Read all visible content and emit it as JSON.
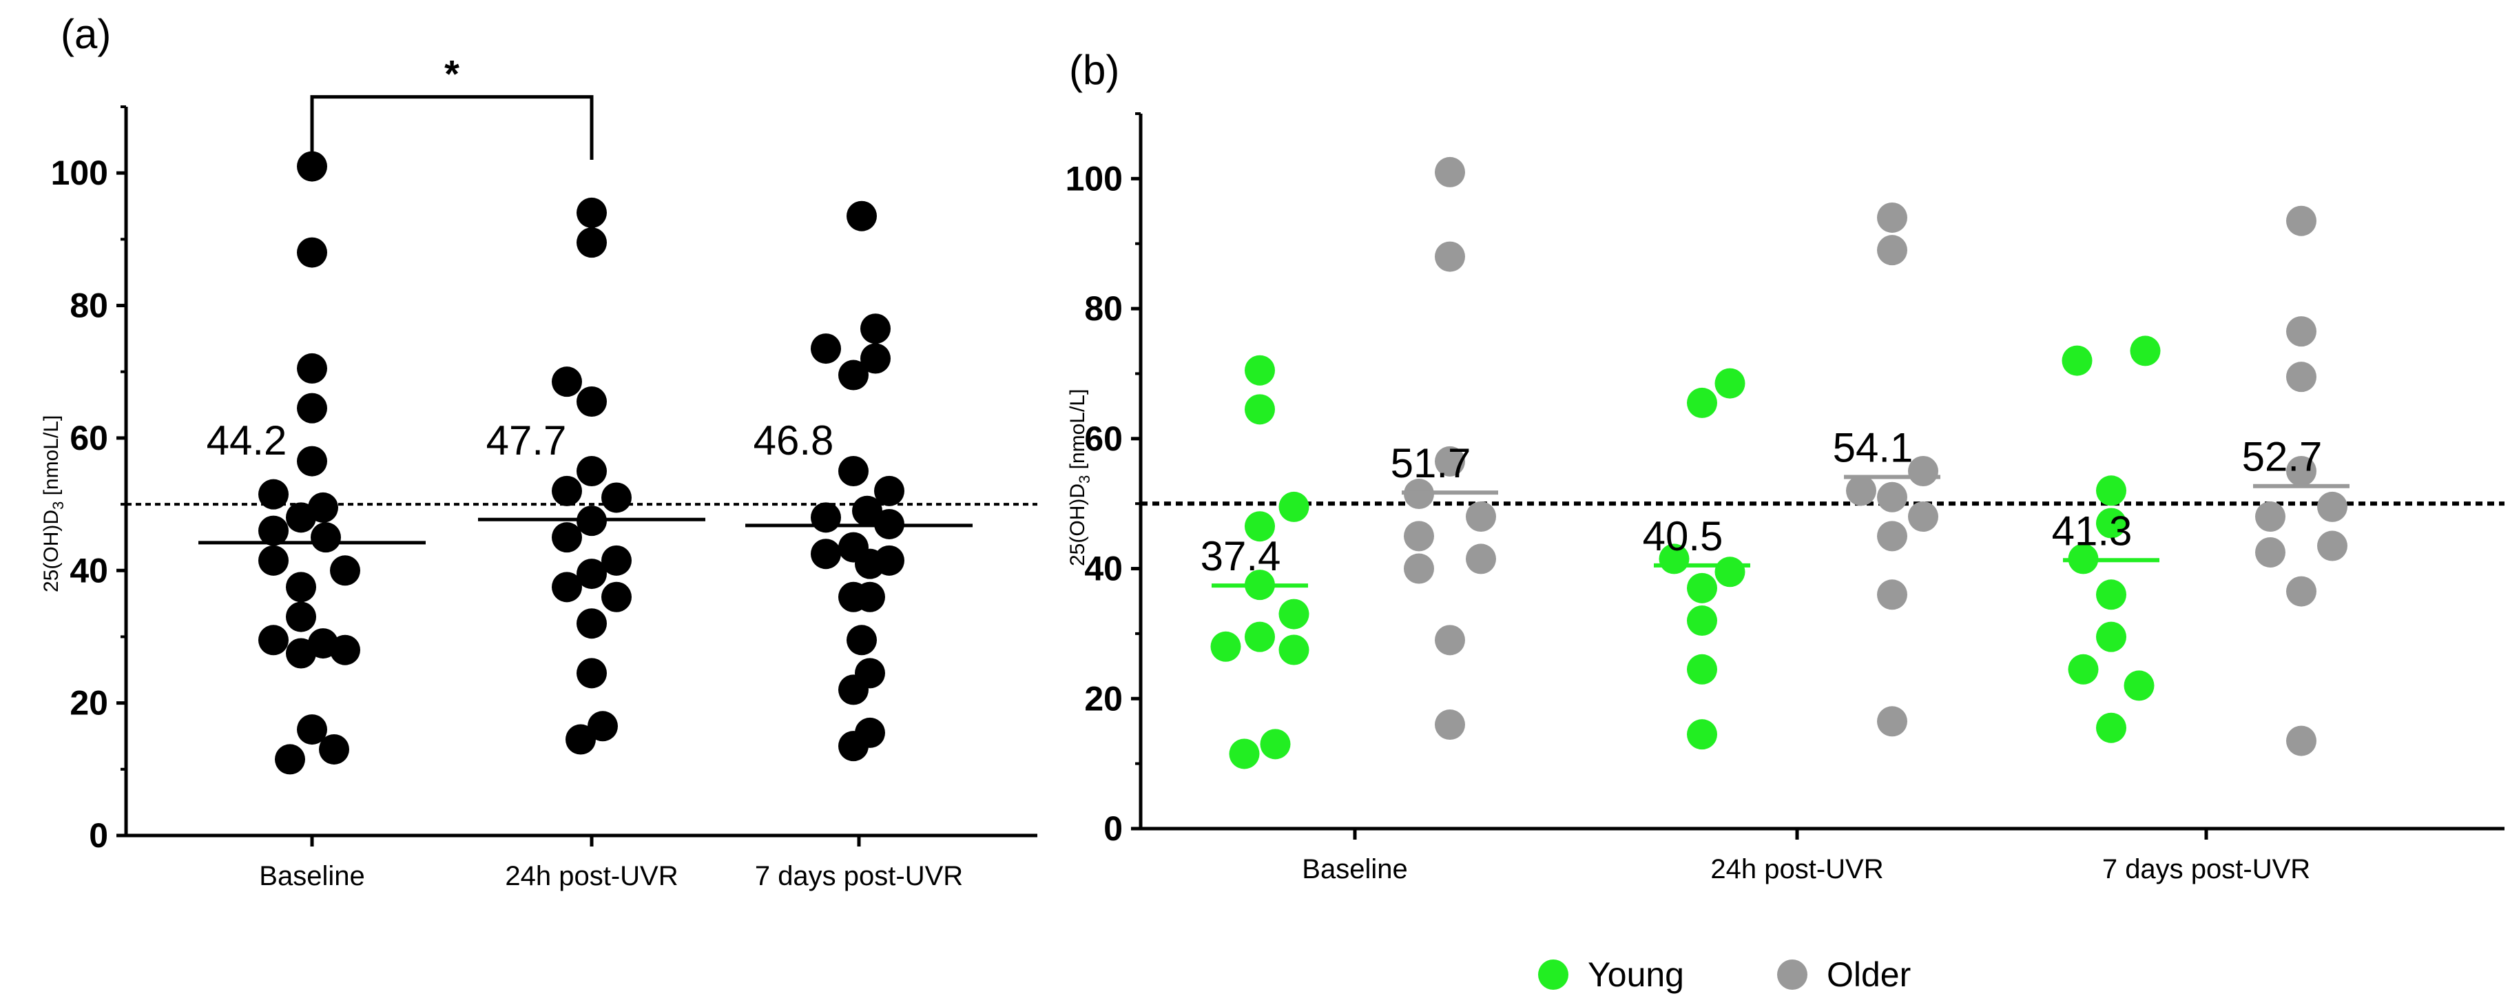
{
  "chart_data": [
    {
      "panel": "(a)",
      "type": "scatter",
      "title": "",
      "ylabel_main": "25(OH)D",
      "ylabel_sub": "3",
      "ylabel_unit": " [nmoL/L]",
      "ylim": [
        0,
        110
      ],
      "yticks": [
        0,
        20,
        40,
        60,
        80,
        100
      ],
      "categories": [
        "Baseline",
        "24h post-UVR",
        "7 days post-UVR"
      ],
      "reference_line": 50,
      "point_color": "#000000",
      "significance": {
        "from": 0,
        "to": 1,
        "label": "*"
      },
      "groups": [
        {
          "category": "Baseline",
          "mean": 44.2,
          "mean_label": "44.2",
          "points": [
            {
              "dx": 0,
              "y": 101
            },
            {
              "dx": 0,
              "y": 88
            },
            {
              "dx": 0,
              "y": 70.5
            },
            {
              "dx": 0,
              "y": 64.5
            },
            {
              "dx": 0,
              "y": 56.5
            },
            {
              "dx": -1.4,
              "y": 51.5
            },
            {
              "dx": 0.4,
              "y": 49.5
            },
            {
              "dx": -0.4,
              "y": 48
            },
            {
              "dx": -1.4,
              "y": 46
            },
            {
              "dx": 0.5,
              "y": 45
            },
            {
              "dx": -1.4,
              "y": 41.5
            },
            {
              "dx": 1.2,
              "y": 40
            },
            {
              "dx": -0.4,
              "y": 37.5
            },
            {
              "dx": -0.4,
              "y": 33
            },
            {
              "dx": -1.4,
              "y": 29.5
            },
            {
              "dx": 0.4,
              "y": 29
            },
            {
              "dx": -0.4,
              "y": 27.5
            },
            {
              "dx": 1.2,
              "y": 28
            },
            {
              "dx": 0,
              "y": 16
            },
            {
              "dx": 0.8,
              "y": 13
            },
            {
              "dx": -0.8,
              "y": 11.5
            }
          ]
        },
        {
          "category": "24h post-UVR",
          "mean": 47.7,
          "mean_label": "47.7",
          "points": [
            {
              "dx": 0,
              "y": 94
            },
            {
              "dx": 0,
              "y": 89.5
            },
            {
              "dx": -0.9,
              "y": 68.5
            },
            {
              "dx": 0,
              "y": 65.5
            },
            {
              "dx": 0,
              "y": 55
            },
            {
              "dx": -0.9,
              "y": 52
            },
            {
              "dx": 0.9,
              "y": 51
            },
            {
              "dx": 0,
              "y": 47.5
            },
            {
              "dx": -0.9,
              "y": 45
            },
            {
              "dx": 0.9,
              "y": 41.5
            },
            {
              "dx": 0,
              "y": 39.5
            },
            {
              "dx": -0.9,
              "y": 37.5
            },
            {
              "dx": 0.9,
              "y": 36
            },
            {
              "dx": 0,
              "y": 32
            },
            {
              "dx": 0,
              "y": 24.5
            },
            {
              "dx": 0.4,
              "y": 16.5
            },
            {
              "dx": -0.4,
              "y": 14.5
            }
          ]
        },
        {
          "category": "7 days post-UVR",
          "mean": 46.8,
          "mean_label": "46.8",
          "points": [
            {
              "dx": 0.1,
              "y": 93.5
            },
            {
              "dx": 0.6,
              "y": 76.5
            },
            {
              "dx": -1.2,
              "y": 73.5
            },
            {
              "dx": 0.6,
              "y": 72
            },
            {
              "dx": -0.2,
              "y": 69.5
            },
            {
              "dx": -0.2,
              "y": 55
            },
            {
              "dx": 1.1,
              "y": 52
            },
            {
              "dx": 0.3,
              "y": 49
            },
            {
              "dx": -1.2,
              "y": 48
            },
            {
              "dx": 1.1,
              "y": 47
            },
            {
              "dx": -0.2,
              "y": 43.5
            },
            {
              "dx": -1.2,
              "y": 42.5
            },
            {
              "dx": 1.1,
              "y": 41.5
            },
            {
              "dx": 0.4,
              "y": 41
            },
            {
              "dx": -0.2,
              "y": 36
            },
            {
              "dx": 0.4,
              "y": 36
            },
            {
              "dx": 0.1,
              "y": 29.5
            },
            {
              "dx": 0.4,
              "y": 24.5
            },
            {
              "dx": -0.2,
              "y": 22
            },
            {
              "dx": 0.4,
              "y": 15.5
            },
            {
              "dx": -0.2,
              "y": 13.5
            }
          ]
        }
      ]
    },
    {
      "panel": "(b)",
      "type": "scatter",
      "title": "",
      "ylabel_main": "25(OH)D",
      "ylabel_sub": "3",
      "ylabel_unit": " [nmoL/L]",
      "ylim": [
        0,
        110
      ],
      "yticks": [
        0,
        20,
        40,
        60,
        80,
        100
      ],
      "categories": [
        "Baseline",
        "24h post-UVR",
        "7 days post-UVR"
      ],
      "reference_line": 50,
      "series": [
        {
          "name": "Young",
          "color": "#22ee22",
          "groups": [
            {
              "category": "Baseline",
              "mean": 37.4,
              "mean_label": "37.4",
              "points": [
                {
                  "dx": 0,
                  "y": 70.5
                },
                {
                  "dx": 0,
                  "y": 64.5
                },
                {
                  "dx": 1.1,
                  "y": 49.5
                },
                {
                  "dx": 0,
                  "y": 46.5
                },
                {
                  "dx": 0,
                  "y": 37.5
                },
                {
                  "dx": 1.1,
                  "y": 33
                },
                {
                  "dx": 0,
                  "y": 29.5
                },
                {
                  "dx": -1.1,
                  "y": 28
                },
                {
                  "dx": 1.1,
                  "y": 27.5
                },
                {
                  "dx": 0.5,
                  "y": 13
                },
                {
                  "dx": -0.5,
                  "y": 11.5
                }
              ]
            },
            {
              "category": "24h post-UVR",
              "mean": 40.5,
              "mean_label": "40.5",
              "points": [
                {
                  "dx": 0,
                  "y": 65.5
                },
                {
                  "dx": 0.9,
                  "y": 68.5
                },
                {
                  "dx": -0.9,
                  "y": 41.5
                },
                {
                  "dx": 0.9,
                  "y": 39.5
                },
                {
                  "dx": 0,
                  "y": 37
                },
                {
                  "dx": 0,
                  "y": 32
                },
                {
                  "dx": 0,
                  "y": 24.5
                },
                {
                  "dx": 0,
                  "y": 14.5
                }
              ]
            },
            {
              "category": "7 days post-UVR",
              "mean": 41.3,
              "mean_label": "41.3",
              "points": [
                {
                  "dx": -1.1,
                  "y": 72
                },
                {
                  "dx": 1.1,
                  "y": 73.5
                },
                {
                  "dx": 0,
                  "y": 52
                },
                {
                  "dx": 0,
                  "y": 47
                },
                {
                  "dx": -0.9,
                  "y": 41.5
                },
                {
                  "dx": 0,
                  "y": 36
                },
                {
                  "dx": 0,
                  "y": 29.5
                },
                {
                  "dx": -0.9,
                  "y": 24.5
                },
                {
                  "dx": 0.9,
                  "y": 22
                },
                {
                  "dx": 0,
                  "y": 15.5
                }
              ]
            }
          ]
        },
        {
          "name": "Older",
          "color": "#999999",
          "groups": [
            {
              "category": "Baseline",
              "mean": 51.7,
              "mean_label": "51.7",
              "points": [
                {
                  "dx": 0,
                  "y": 101
                },
                {
                  "dx": 0,
                  "y": 88
                },
                {
                  "dx": 0,
                  "y": 56.5
                },
                {
                  "dx": -1.0,
                  "y": 51.5
                },
                {
                  "dx": -1.0,
                  "y": 45
                },
                {
                  "dx": 1.0,
                  "y": 48
                },
                {
                  "dx": -1.0,
                  "y": 40
                },
                {
                  "dx": 1.0,
                  "y": 41.5
                },
                {
                  "dx": 0,
                  "y": 29
                },
                {
                  "dx": 0,
                  "y": 16
                }
              ]
            },
            {
              "category": "24h post-UVR",
              "mean": 54.1,
              "mean_label": "54.1",
              "points": [
                {
                  "dx": 0,
                  "y": 94
                },
                {
                  "dx": 0,
                  "y": 89
                },
                {
                  "dx": -1.0,
                  "y": 52
                },
                {
                  "dx": 1.0,
                  "y": 55
                },
                {
                  "dx": 0,
                  "y": 51
                },
                {
                  "dx": 0,
                  "y": 45
                },
                {
                  "dx": 1.0,
                  "y": 48
                },
                {
                  "dx": 0,
                  "y": 36
                },
                {
                  "dx": 0,
                  "y": 16.5
                }
              ]
            },
            {
              "category": "7 days post-UVR",
              "mean": 52.7,
              "mean_label": "52.7",
              "points": [
                {
                  "dx": 0,
                  "y": 93.5
                },
                {
                  "dx": 0,
                  "y": 76.5
                },
                {
                  "dx": 0,
                  "y": 69.5
                },
                {
                  "dx": 0,
                  "y": 55
                },
                {
                  "dx": -1.0,
                  "y": 48
                },
                {
                  "dx": 1.0,
                  "y": 49.5
                },
                {
                  "dx": -1.0,
                  "y": 42.5
                },
                {
                  "dx": 1.0,
                  "y": 43.5
                },
                {
                  "dx": 0,
                  "y": 36.5
                },
                {
                  "dx": 0,
                  "y": 13.5
                }
              ]
            }
          ]
        }
      ],
      "legend": {
        "position": "bottom-center",
        "entries": [
          "Young",
          "Older"
        ]
      }
    }
  ]
}
